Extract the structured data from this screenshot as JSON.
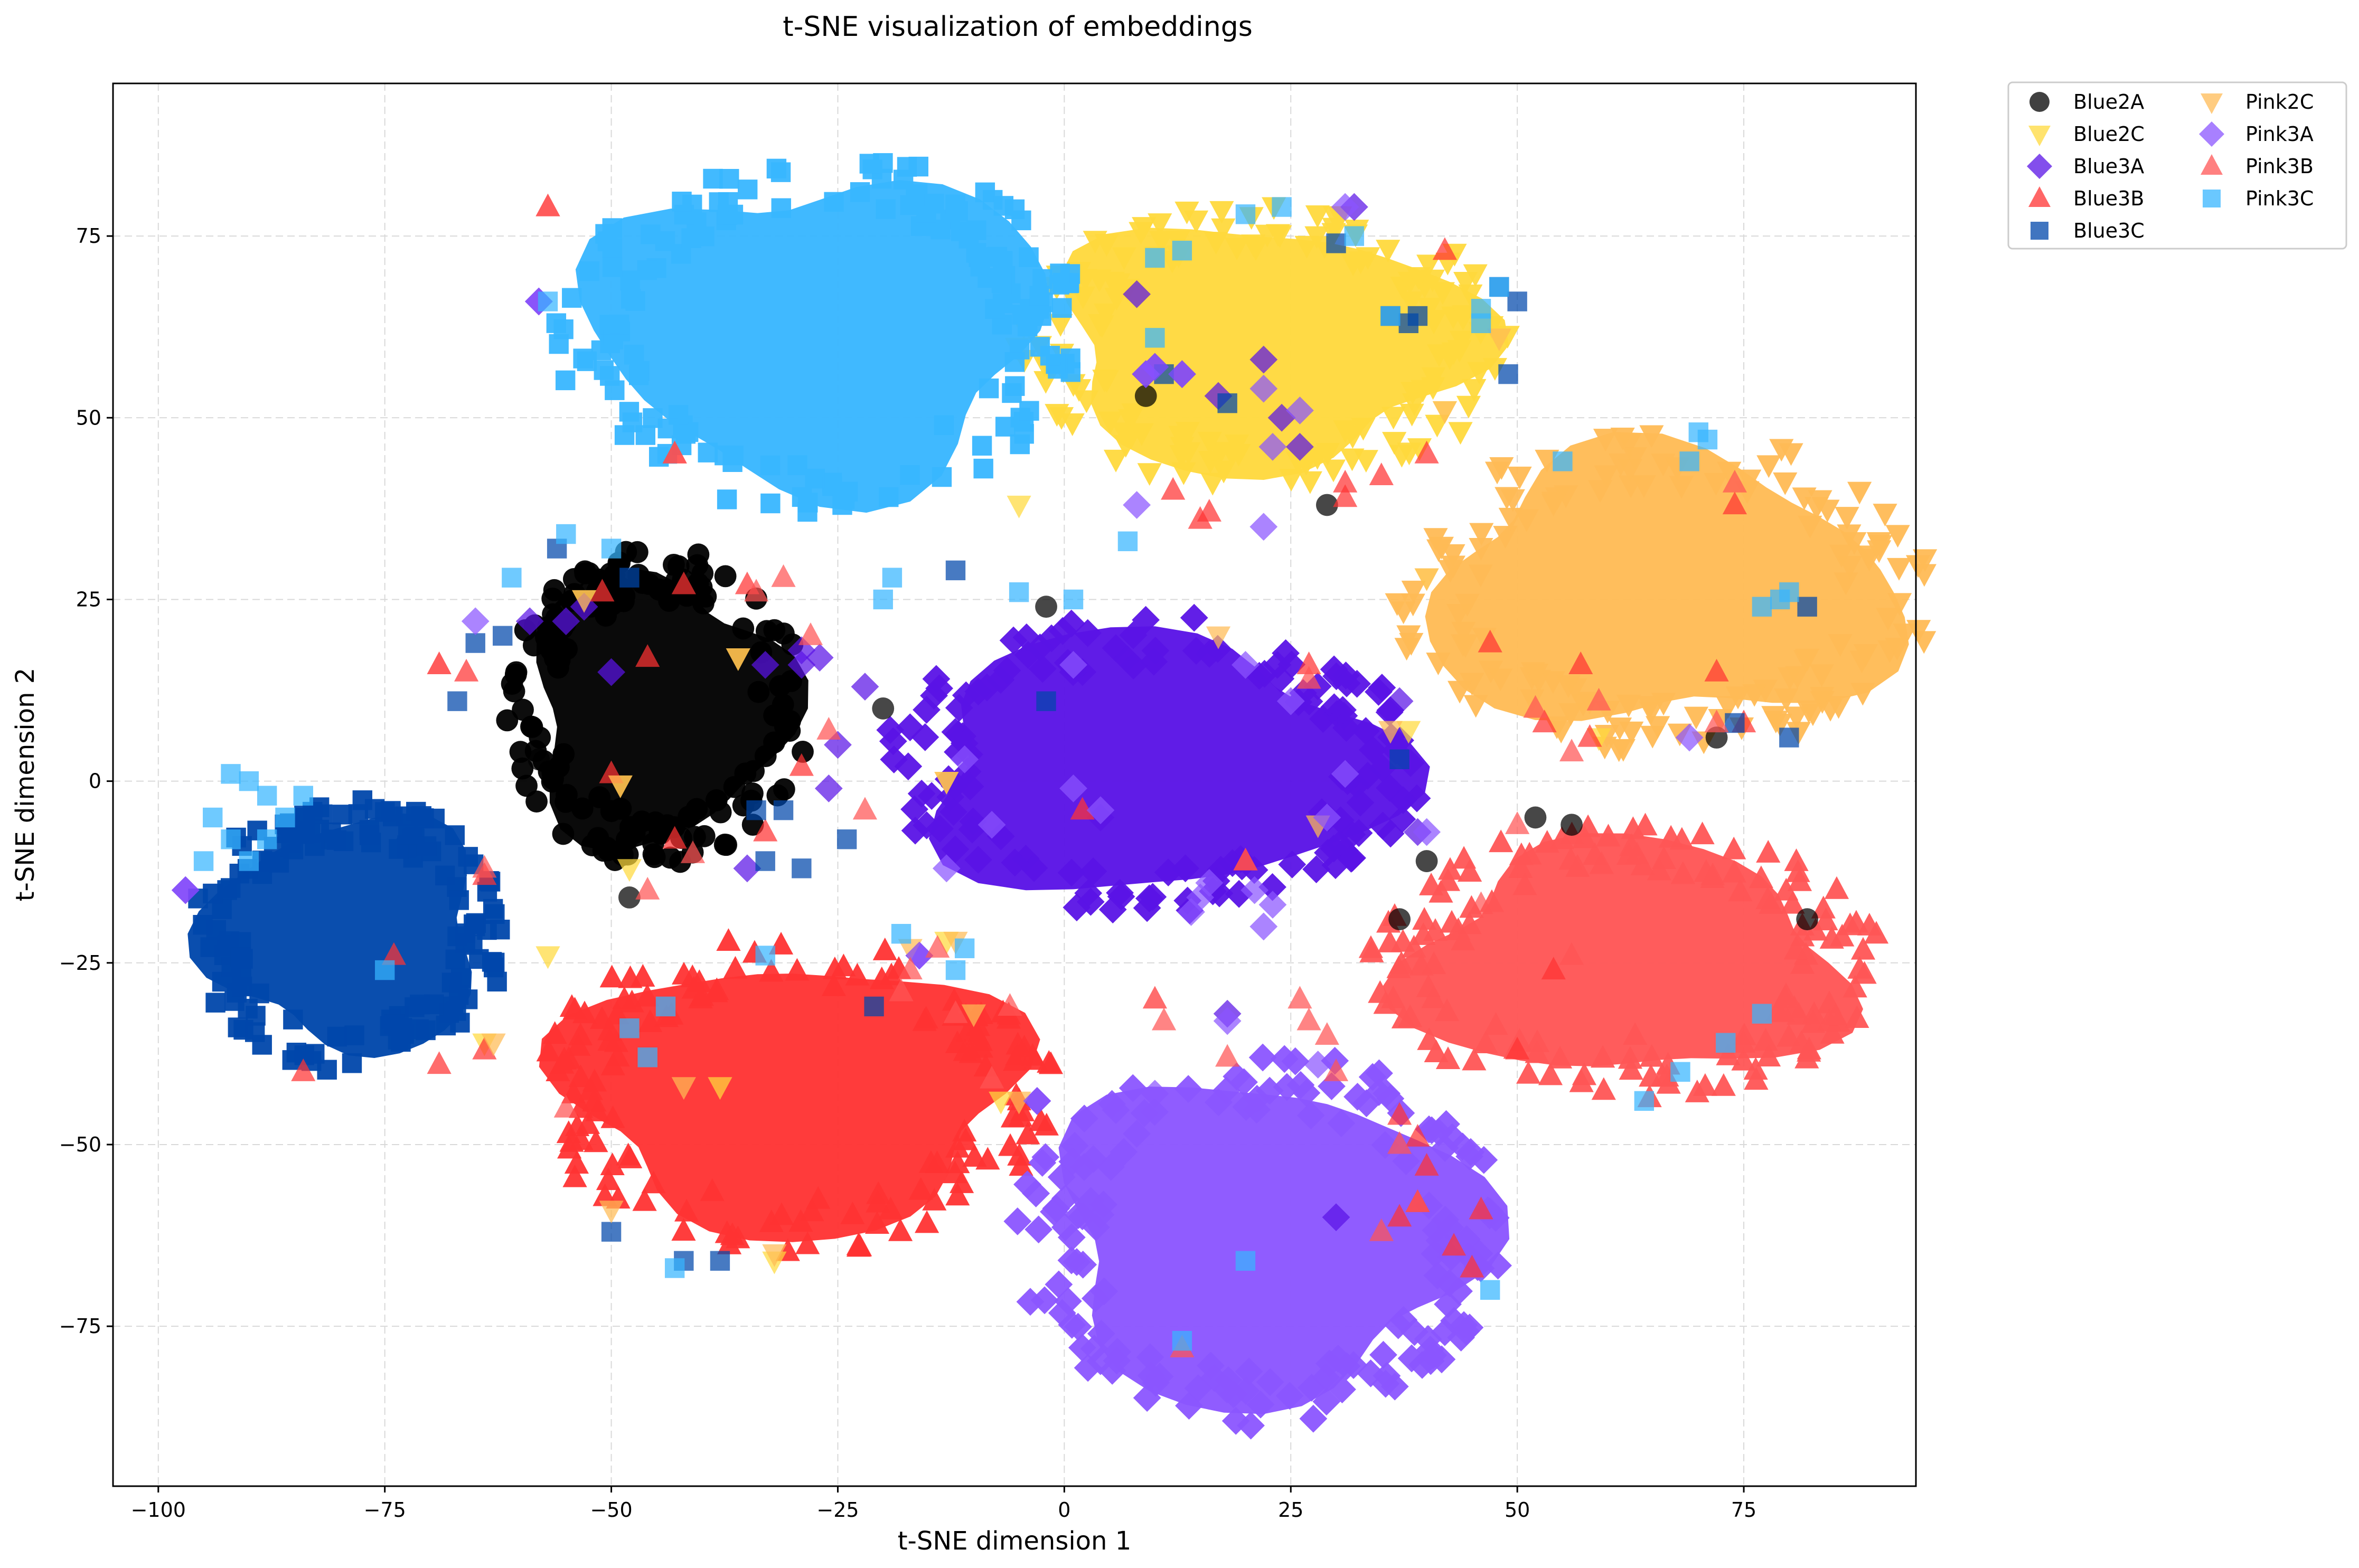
{
  "chart_data": {
    "type": "scatter",
    "title": "t-SNE visualization of embeddings",
    "xlabel": "t-SNE dimension 1",
    "ylabel": "t-SNE dimension 2",
    "xlim": [
      -105,
      94
    ],
    "ylim": [
      -97,
      96
    ],
    "xticks": [
      -100,
      -75,
      -50,
      -25,
      0,
      25,
      50,
      75
    ],
    "yticks": [
      -75,
      -50,
      -25,
      0,
      25,
      50,
      75
    ],
    "xtick_labels": [
      "−100",
      "−75",
      "−50",
      "−25",
      "0",
      "25",
      "50",
      "75"
    ],
    "ytick_labels": [
      "−75",
      "−50",
      "−25",
      "0",
      "25",
      "50",
      "75"
    ],
    "grid": true,
    "legend_position": "outside-top-right",
    "series": [
      {
        "name": "Blue2A",
        "marker": "circle",
        "color": "#000000",
        "clusters": [
          {
            "cx": -45,
            "cy": 10,
            "rx": 16,
            "ry": 21,
            "n": 150
          }
        ]
      },
      {
        "name": "Blue2C",
        "marker": "triangle-down",
        "color": "#FFD93D",
        "clusters": [
          {
            "cx": 22,
            "cy": 60,
            "rx": 26,
            "ry": 19,
            "n": 150
          }
        ]
      },
      {
        "name": "Blue3A",
        "marker": "diamond",
        "color": "#5A13E6",
        "clusters": [
          {
            "cx": 10,
            "cy": 2,
            "rx": 29,
            "ry": 20,
            "n": 150
          }
        ]
      },
      {
        "name": "Blue3B",
        "marker": "triangle-up",
        "color": "#FF3333",
        "clusters": [
          {
            "cx": -30,
            "cy": -43,
            "rx": 28,
            "ry": 21,
            "n": 150
          }
        ]
      },
      {
        "name": "Blue3C",
        "marker": "square",
        "color": "#0047AB",
        "clusters": [
          {
            "cx": -79,
            "cy": -21,
            "rx": 17,
            "ry": 18,
            "n": 140
          }
        ]
      },
      {
        "name": "Pink2C",
        "marker": "triangle-down",
        "color": "#FFBB55",
        "clusters": [
          {
            "cx": 66,
            "cy": 26,
            "rx": 29,
            "ry": 21,
            "n": 150
          }
        ]
      },
      {
        "name": "Pink3A",
        "marker": "diamond",
        "color": "#8B55FF",
        "clusters": [
          {
            "cx": 22,
            "cy": -63,
            "rx": 26,
            "ry": 25,
            "n": 160
          }
        ]
      },
      {
        "name": "Pink3B",
        "marker": "triangle-up",
        "color": "#FF5555",
        "clusters": [
          {
            "cx": 62,
            "cy": -25,
            "rx": 27,
            "ry": 18,
            "n": 150
          }
        ]
      },
      {
        "name": "Pink3C",
        "marker": "square",
        "color": "#38B6FF",
        "clusters": [
          {
            "cx": -27,
            "cy": 62,
            "rx": 28,
            "ry": 24,
            "n": 160
          }
        ]
      }
    ],
    "outliers": [
      {
        "series": "Blue2A",
        "points": [
          [
            -48,
            -16
          ],
          [
            52,
            -5
          ],
          [
            56,
            -6
          ],
          [
            40,
            -11
          ],
          [
            37,
            -19
          ],
          [
            82,
            -19
          ],
          [
            -2,
            24
          ],
          [
            9,
            53
          ],
          [
            29,
            38
          ],
          [
            72,
            6
          ],
          [
            -20,
            10
          ],
          [
            -58,
            3
          ]
        ]
      },
      {
        "series": "Blue2C",
        "points": [
          [
            -49,
            -0.5
          ],
          [
            -38,
            -42
          ],
          [
            -36,
            17
          ],
          [
            -53,
            25
          ],
          [
            -48,
            -12
          ],
          [
            -13,
            -22
          ],
          [
            -32,
            -66
          ],
          [
            -7,
            -44
          ],
          [
            -5,
            38
          ],
          [
            38,
            7
          ],
          [
            40,
            28
          ],
          [
            48,
            61
          ],
          [
            42,
            51
          ],
          [
            59,
            6
          ],
          [
            -64,
            -36
          ],
          [
            -57,
            -24
          ],
          [
            -13,
            0
          ]
        ]
      },
      {
        "series": "Blue3A",
        "points": [
          [
            -58,
            66
          ],
          [
            -29,
            16
          ],
          [
            -33,
            16
          ],
          [
            -29,
            18
          ],
          [
            -27,
            17
          ],
          [
            -25,
            5
          ],
          [
            -22,
            13
          ],
          [
            -50,
            15
          ],
          [
            -55,
            22
          ],
          [
            -53,
            24
          ],
          [
            -26,
            -1
          ],
          [
            -35,
            -12
          ],
          [
            30,
            -60
          ],
          [
            -97,
            -15
          ],
          [
            -3,
            -44
          ],
          [
            -16,
            -24
          ],
          [
            9,
            56
          ],
          [
            10,
            57
          ],
          [
            13,
            56
          ],
          [
            17,
            53
          ],
          [
            22,
            58
          ],
          [
            24,
            50
          ],
          [
            26,
            46
          ],
          [
            32,
            79
          ],
          [
            8,
            67
          ],
          [
            -59,
            22
          ],
          [
            4,
            -5
          ],
          [
            18,
            -32
          ],
          [
            39,
            -7
          ],
          [
            37,
            11
          ]
        ]
      },
      {
        "series": "Blue3B",
        "points": [
          [
            -50,
            1
          ],
          [
            -46,
            17
          ],
          [
            -42,
            27
          ],
          [
            -43,
            -8
          ],
          [
            -33,
            -7
          ],
          [
            -35,
            27
          ],
          [
            -51,
            26
          ],
          [
            -74,
            -24
          ],
          [
            -69,
            -39
          ],
          [
            -84,
            -40
          ],
          [
            -64,
            -37
          ],
          [
            -64,
            -13
          ],
          [
            10,
            -30
          ],
          [
            -29,
            2
          ],
          [
            -57,
            79
          ],
          [
            -43,
            45
          ],
          [
            20,
            -11
          ],
          [
            2,
            -4
          ],
          [
            27,
            16
          ],
          [
            31,
            41
          ],
          [
            31,
            39
          ],
          [
            15,
            36
          ],
          [
            35,
            42
          ],
          [
            40,
            45
          ],
          [
            42,
            73
          ],
          [
            12,
            40
          ],
          [
            16,
            37
          ],
          [
            -66,
            15
          ],
          [
            -69,
            16
          ],
          [
            37,
            -46
          ],
          [
            37,
            -60
          ],
          [
            39,
            -58
          ],
          [
            40,
            -53
          ],
          [
            39,
            -49
          ],
          [
            43,
            -64
          ],
          [
            45,
            -67
          ],
          [
            46,
            -59
          ],
          [
            54,
            -26
          ],
          [
            50,
            -37
          ],
          [
            75,
            8
          ],
          [
            72,
            15
          ],
          [
            74,
            38
          ],
          [
            57,
            16
          ],
          [
            47,
            19
          ],
          [
            53,
            8
          ],
          [
            58,
            6
          ]
        ]
      },
      {
        "series": "Blue3C",
        "points": [
          [
            -34,
            -4
          ],
          [
            -33,
            -11
          ],
          [
            -31,
            -4
          ],
          [
            -29,
            -12
          ],
          [
            -24,
            -8
          ],
          [
            -21,
            -31
          ],
          [
            -12,
            29
          ],
          [
            -48,
            28
          ],
          [
            -56,
            32
          ],
          [
            -62,
            20
          ],
          [
            -65,
            19
          ],
          [
            -67,
            11
          ],
          [
            -50,
            -62
          ],
          [
            -42,
            -66
          ],
          [
            -38,
            -66
          ],
          [
            -2,
            11
          ],
          [
            11,
            56
          ],
          [
            18,
            52
          ],
          [
            30,
            74
          ],
          [
            36,
            64
          ],
          [
            38,
            63
          ],
          [
            39,
            64
          ],
          [
            48,
            68
          ],
          [
            49,
            56
          ],
          [
            50,
            66
          ],
          [
            37,
            3
          ],
          [
            80,
            6
          ],
          [
            82,
            24
          ],
          [
            74,
            8
          ]
        ]
      },
      {
        "series": "Pink2C",
        "points": [
          [
            -63,
            -36
          ],
          [
            -50,
            -59
          ],
          [
            -42,
            -42
          ],
          [
            -32,
            -65
          ],
          [
            -17,
            -23
          ],
          [
            -13,
            0
          ],
          [
            -12,
            -22
          ],
          [
            -10,
            -32
          ],
          [
            -5,
            -44
          ],
          [
            17,
            20
          ],
          [
            28,
            -6
          ],
          [
            36,
            7
          ],
          [
            40,
            28
          ],
          [
            42,
            51
          ],
          [
            48,
            61
          ],
          [
            -53,
            25
          ],
          [
            -36,
            17
          ],
          [
            -49,
            -0.5
          ]
        ]
      },
      {
        "series": "Pink3A",
        "points": [
          [
            -58,
            66
          ],
          [
            -97,
            -15
          ],
          [
            -3,
            -44
          ],
          [
            -16,
            -24
          ],
          [
            -8,
            -6
          ],
          [
            -13,
            -12
          ],
          [
            -11,
            3
          ],
          [
            20,
            16
          ],
          [
            16,
            -14
          ],
          [
            15,
            -16
          ],
          [
            21,
            -15
          ],
          [
            14,
            -18
          ],
          [
            22,
            -20
          ],
          [
            23,
            -17
          ],
          [
            29,
            -5
          ],
          [
            31,
            1
          ],
          [
            40,
            -7
          ],
          [
            31,
            79
          ],
          [
            22,
            54
          ],
          [
            23,
            46
          ],
          [
            22,
            35
          ],
          [
            9,
            56
          ],
          [
            10,
            57
          ],
          [
            13,
            56
          ],
          [
            26,
            51
          ],
          [
            8,
            38
          ],
          [
            69,
            6
          ],
          [
            -65,
            22
          ],
          [
            25,
            11
          ],
          [
            28,
            -39
          ],
          [
            4,
            -4
          ],
          [
            1,
            -1
          ],
          [
            1,
            16
          ],
          [
            18,
            -33
          ],
          [
            10,
            -43
          ]
        ]
      },
      {
        "series": "Pink3B",
        "points": [
          [
            -31,
            28
          ],
          [
            -34,
            26
          ],
          [
            -26,
            7
          ],
          [
            -28,
            20
          ],
          [
            -17,
            -26
          ],
          [
            -14,
            -23
          ],
          [
            -18,
            -29
          ],
          [
            -12,
            -32
          ],
          [
            -8,
            -41
          ],
          [
            -6,
            -31
          ],
          [
            -22,
            -4
          ],
          [
            -41,
            -10
          ],
          [
            -46,
            -15
          ],
          [
            -55,
            -45
          ],
          [
            -64,
            -12
          ],
          [
            -69,
            16
          ],
          [
            -43,
            45
          ],
          [
            -57,
            79
          ],
          [
            27,
            14
          ],
          [
            26,
            -30
          ],
          [
            27,
            -33
          ],
          [
            29,
            -35
          ],
          [
            39,
            -58
          ],
          [
            35,
            -62
          ],
          [
            37,
            -50
          ],
          [
            30,
            -40
          ],
          [
            44,
            -22
          ],
          [
            50,
            -6
          ],
          [
            46,
            -17
          ],
          [
            56,
            -24
          ],
          [
            63,
            -35
          ],
          [
            52,
            10
          ],
          [
            74,
            41
          ],
          [
            72,
            8
          ],
          [
            59,
            11
          ],
          [
            56,
            4
          ],
          [
            13,
            -78
          ],
          [
            18,
            -38
          ],
          [
            20,
            -11
          ],
          [
            11,
            -33
          ]
        ]
      },
      {
        "series": "Pink3C",
        "points": [
          [
            -57,
            66
          ],
          [
            -90,
            0
          ],
          [
            -92,
            1
          ],
          [
            -88,
            -2
          ],
          [
            -86,
            -5
          ],
          [
            -84,
            -2
          ],
          [
            -88,
            -8
          ],
          [
            -92,
            -8
          ],
          [
            -94,
            -5
          ],
          [
            -90,
            -11
          ],
          [
            -95,
            -11
          ],
          [
            -75,
            -26
          ],
          [
            -61,
            28
          ],
          [
            -55,
            34
          ],
          [
            -50,
            32
          ],
          [
            -48,
            -34
          ],
          [
            -46,
            -38
          ],
          [
            -44,
            -31
          ],
          [
            -43,
            -67
          ],
          [
            -33,
            -24
          ],
          [
            -20,
            25
          ],
          [
            -19,
            28
          ],
          [
            -18,
            -21
          ],
          [
            -11,
            -23
          ],
          [
            -12,
            -26
          ],
          [
            -5,
            26
          ],
          [
            1,
            25
          ],
          [
            7,
            33
          ],
          [
            10,
            72
          ],
          [
            13,
            73
          ],
          [
            20,
            78
          ],
          [
            24,
            79
          ],
          [
            32,
            75
          ],
          [
            46,
            65
          ],
          [
            46,
            63
          ],
          [
            36,
            64
          ],
          [
            10,
            61
          ],
          [
            48,
            68
          ],
          [
            55,
            44
          ],
          [
            69,
            44
          ],
          [
            70,
            48
          ],
          [
            71,
            47
          ],
          [
            77,
            24
          ],
          [
            79,
            25
          ],
          [
            80,
            26
          ],
          [
            77,
            -32
          ],
          [
            73,
            -36
          ],
          [
            68,
            -40
          ],
          [
            64,
            -44
          ],
          [
            47,
            -70
          ],
          [
            20,
            -66
          ],
          [
            13,
            -77
          ]
        ]
      }
    ]
  }
}
